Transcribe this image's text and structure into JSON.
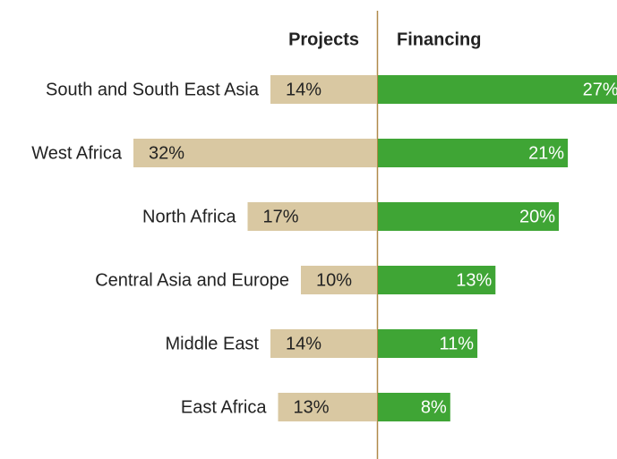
{
  "chart_data": {
    "type": "bar",
    "categories": [
      "South and South East Asia",
      "West Africa",
      "North Africa",
      "Central Asia and Europe",
      "Middle East",
      "East Africa"
    ],
    "series": [
      {
        "name": "Projects",
        "color": "#d9c8a2",
        "values": [
          14,
          32,
          17,
          10,
          14,
          13
        ],
        "value_labels": [
          "14%",
          "32%",
          "17%",
          "10%",
          "14%",
          "13%"
        ]
      },
      {
        "name": "Financing",
        "color": "#3fa535",
        "values": [
          27,
          21,
          20,
          13,
          11,
          8
        ],
        "value_labels": [
          "27%",
          "21%",
          "20%",
          "13%",
          "11%",
          "8%"
        ]
      }
    ]
  }
}
